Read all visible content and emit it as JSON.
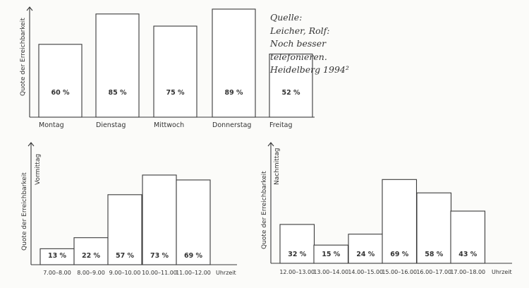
{
  "source": {
    "lines": [
      "Quelle:",
      "Leicher, Rolf:",
      "Noch besser",
      "telefonieren.",
      "Heidelberg 1994²"
    ]
  },
  "chart_data": [
    {
      "type": "bar",
      "title": "",
      "ylabel": "Quote der Erreichbarkeit",
      "sublabel": "",
      "xlabel": "",
      "categories": [
        "Montag",
        "Dienstag",
        "Mittwoch",
        "Donnerstag",
        "Freitag"
      ],
      "values": [
        60,
        85,
        75,
        89,
        52
      ],
      "value_labels": [
        "60 %",
        "85 %",
        "75 %",
        "89 %",
        "52 %"
      ],
      "unit": "%",
      "ylim": [
        0,
        100
      ],
      "grid": false
    },
    {
      "type": "bar",
      "title": "",
      "ylabel": "Quote der Erreichbarkeit",
      "sublabel": "Vormittag",
      "xlabel": "Uhrzeit",
      "categories": [
        "7.00–8.00",
        "8.00–9.00",
        "9.00–10.00",
        "10.00–11.00",
        "11.00–12.00"
      ],
      "values": [
        13,
        22,
        57,
        73,
        69
      ],
      "value_labels": [
        "13 %",
        "22 %",
        "57 %",
        "73 %",
        "69 %"
      ],
      "unit": "%",
      "ylim": [
        0,
        100
      ],
      "grid": false
    },
    {
      "type": "bar",
      "title": "",
      "ylabel": "Quote der Erreichbarkeit",
      "sublabel": "Nachmittag",
      "xlabel": "Uhrzeit",
      "categories": [
        "12.00–13.00",
        "13.00–14.00",
        "14.00–15.00",
        "15.00–16.00",
        "16.00–17.00",
        "17.00–18.00"
      ],
      "values": [
        32,
        15,
        24,
        69,
        58,
        43
      ],
      "value_labels": [
        "32 %",
        "15 %",
        "24 %",
        "69 %",
        "58 %",
        "43 %"
      ],
      "unit": "%",
      "ylim": [
        0,
        100
      ],
      "grid": false
    }
  ]
}
